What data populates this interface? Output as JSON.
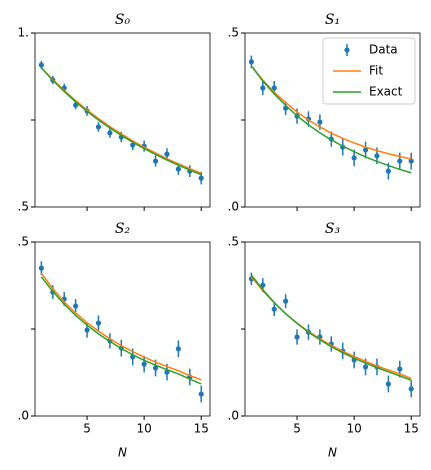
{
  "chart_data": [
    {
      "type": "errorbar-line",
      "title": "S₀",
      "x": [
        1,
        2,
        3,
        4,
        5,
        6,
        7,
        8,
        9,
        10,
        11,
        12,
        13,
        14,
        15
      ],
      "xlim": [
        0.44,
        15.77
      ],
      "xticks": [
        5,
        10,
        15
      ],
      "xtick_labels": false,
      "ylim": [
        0.5,
        1.0
      ],
      "yticks": [
        {
          "value": 0.5,
          "label": ".5"
        },
        {
          "value": 1.0,
          "label": "1."
        }
      ],
      "minor_yticks": [
        0.75
      ],
      "series": [
        {
          "name": "Data",
          "color": "#1f77b4",
          "marker": true,
          "values": [
            0.908,
            0.865,
            0.842,
            0.793,
            0.776,
            0.73,
            0.713,
            0.701,
            0.678,
            0.675,
            0.632,
            0.652,
            0.609,
            0.603,
            0.583
          ],
          "errors": [
            0.012,
            0.012,
            0.012,
            0.012,
            0.014,
            0.014,
            0.014,
            0.015,
            0.015,
            0.016,
            0.016,
            0.017,
            0.017,
            0.017,
            0.018
          ]
        },
        {
          "name": "Fit",
          "color": "#ff7f0e",
          "values": [
            0.9,
            0.866,
            0.835,
            0.806,
            0.779,
            0.754,
            0.731,
            0.71,
            0.69,
            0.672,
            0.655,
            0.639,
            0.624,
            0.61,
            0.597
          ]
        },
        {
          "name": "Exact",
          "color": "#2ca02c",
          "values": [
            0.9,
            0.864,
            0.832,
            0.802,
            0.775,
            0.75,
            0.727,
            0.706,
            0.686,
            0.668,
            0.651,
            0.635,
            0.62,
            0.606,
            0.593
          ]
        }
      ]
    },
    {
      "type": "errorbar-line",
      "title": "S₁",
      "x": [
        1,
        2,
        3,
        4,
        5,
        6,
        7,
        8,
        9,
        10,
        11,
        12,
        13,
        14,
        15
      ],
      "xlim": [
        0.44,
        15.77
      ],
      "xticks": [
        5,
        10,
        15
      ],
      "xtick_labels": false,
      "ylim": [
        0,
        0.5
      ],
      "yticks": [
        {
          "value": 0,
          "label": ".0"
        },
        {
          "value": 0.5,
          "label": ".5"
        }
      ],
      "minor_yticks": [
        0.25
      ],
      "legend": "upper right",
      "series": [
        {
          "name": "Data",
          "color": "#1f77b4",
          "marker": true,
          "values": [
            0.417,
            0.342,
            0.342,
            0.284,
            0.261,
            0.253,
            0.244,
            0.195,
            0.172,
            0.141,
            0.164,
            0.147,
            0.103,
            0.132,
            0.132
          ],
          "errors": [
            0.018,
            0.02,
            0.02,
            0.02,
            0.022,
            0.022,
            0.022,
            0.022,
            0.024,
            0.024,
            0.024,
            0.024,
            0.024,
            0.024,
            0.024
          ]
        },
        {
          "name": "Fit",
          "color": "#ff7f0e",
          "values": [
            0.405,
            0.365,
            0.33,
            0.3,
            0.273,
            0.25,
            0.23,
            0.212,
            0.197,
            0.184,
            0.172,
            0.162,
            0.153,
            0.145,
            0.138
          ]
        },
        {
          "name": "Exact",
          "color": "#2ca02c",
          "values": [
            0.405,
            0.362,
            0.325,
            0.292,
            0.262,
            0.236,
            0.213,
            0.193,
            0.175,
            0.159,
            0.144,
            0.131,
            0.119,
            0.108,
            0.098
          ]
        }
      ]
    },
    {
      "type": "errorbar-line",
      "title": "S₂",
      "x": [
        1,
        2,
        3,
        4,
        5,
        6,
        7,
        8,
        9,
        10,
        11,
        12,
        13,
        14,
        15
      ],
      "xlim": [
        0.44,
        15.77
      ],
      "xticks": [
        5,
        10,
        15
      ],
      "xtick_labels": true,
      "xlabel": "N",
      "ylim": [
        0,
        0.5
      ],
      "yticks": [
        {
          "value": 0,
          "label": ".0"
        },
        {
          "value": 0.5,
          "label": ".5"
        }
      ],
      "minor_yticks": [
        0.25
      ],
      "series": [
        {
          "name": "Data",
          "color": "#1f77b4",
          "marker": true,
          "values": [
            0.425,
            0.356,
            0.336,
            0.316,
            0.247,
            0.267,
            0.216,
            0.195,
            0.17,
            0.149,
            0.138,
            0.126,
            0.193,
            0.112,
            0.063
          ],
          "errors": [
            0.02,
            0.02,
            0.02,
            0.02,
            0.022,
            0.022,
            0.022,
            0.024,
            0.024,
            0.024,
            0.024,
            0.024,
            0.024,
            0.024,
            0.024
          ]
        },
        {
          "name": "Fit",
          "color": "#ff7f0e",
          "values": [
            0.41,
            0.366,
            0.328,
            0.296,
            0.268,
            0.244,
            0.222,
            0.202,
            0.185,
            0.169,
            0.155,
            0.142,
            0.13,
            0.116,
            0.104
          ]
        },
        {
          "name": "Exact",
          "color": "#2ca02c",
          "values": [
            0.4,
            0.358,
            0.321,
            0.289,
            0.261,
            0.236,
            0.214,
            0.194,
            0.176,
            0.16,
            0.146,
            0.133,
            0.121,
            0.106,
            0.092
          ]
        }
      ]
    },
    {
      "type": "errorbar-line",
      "title": "S₃",
      "x": [
        1,
        2,
        3,
        4,
        5,
        6,
        7,
        8,
        9,
        10,
        11,
        12,
        13,
        14,
        15
      ],
      "xlim": [
        0.44,
        15.77
      ],
      "xticks": [
        5,
        10,
        15
      ],
      "xtick_labels": true,
      "xlabel": "N",
      "ylim": [
        0,
        0.5
      ],
      "yticks": [
        {
          "value": 0,
          "label": ".0"
        },
        {
          "value": 0.5,
          "label": ".5"
        }
      ],
      "minor_yticks": [
        0.25
      ],
      "series": [
        {
          "name": "Data",
          "color": "#1f77b4",
          "marker": true,
          "values": [
            0.394,
            0.376,
            0.307,
            0.33,
            0.227,
            0.241,
            0.227,
            0.207,
            0.187,
            0.161,
            0.141,
            0.141,
            0.092,
            0.135,
            0.078
          ],
          "errors": [
            0.018,
            0.02,
            0.02,
            0.02,
            0.022,
            0.022,
            0.022,
            0.022,
            0.024,
            0.024,
            0.024,
            0.024,
            0.024,
            0.024,
            0.024
          ]
        },
        {
          "name": "Fit",
          "color": "#ff7f0e",
          "values": [
            0.4,
            0.36,
            0.325,
            0.294,
            0.267,
            0.243,
            0.222,
            0.203,
            0.186,
            0.171,
            0.157,
            0.144,
            0.132,
            0.121,
            0.108
          ]
        },
        {
          "name": "Exact",
          "color": "#2ca02c",
          "values": [
            0.405,
            0.363,
            0.326,
            0.294,
            0.266,
            0.241,
            0.219,
            0.199,
            0.182,
            0.166,
            0.152,
            0.139,
            0.127,
            0.115,
            0.103
          ]
        }
      ]
    }
  ]
}
